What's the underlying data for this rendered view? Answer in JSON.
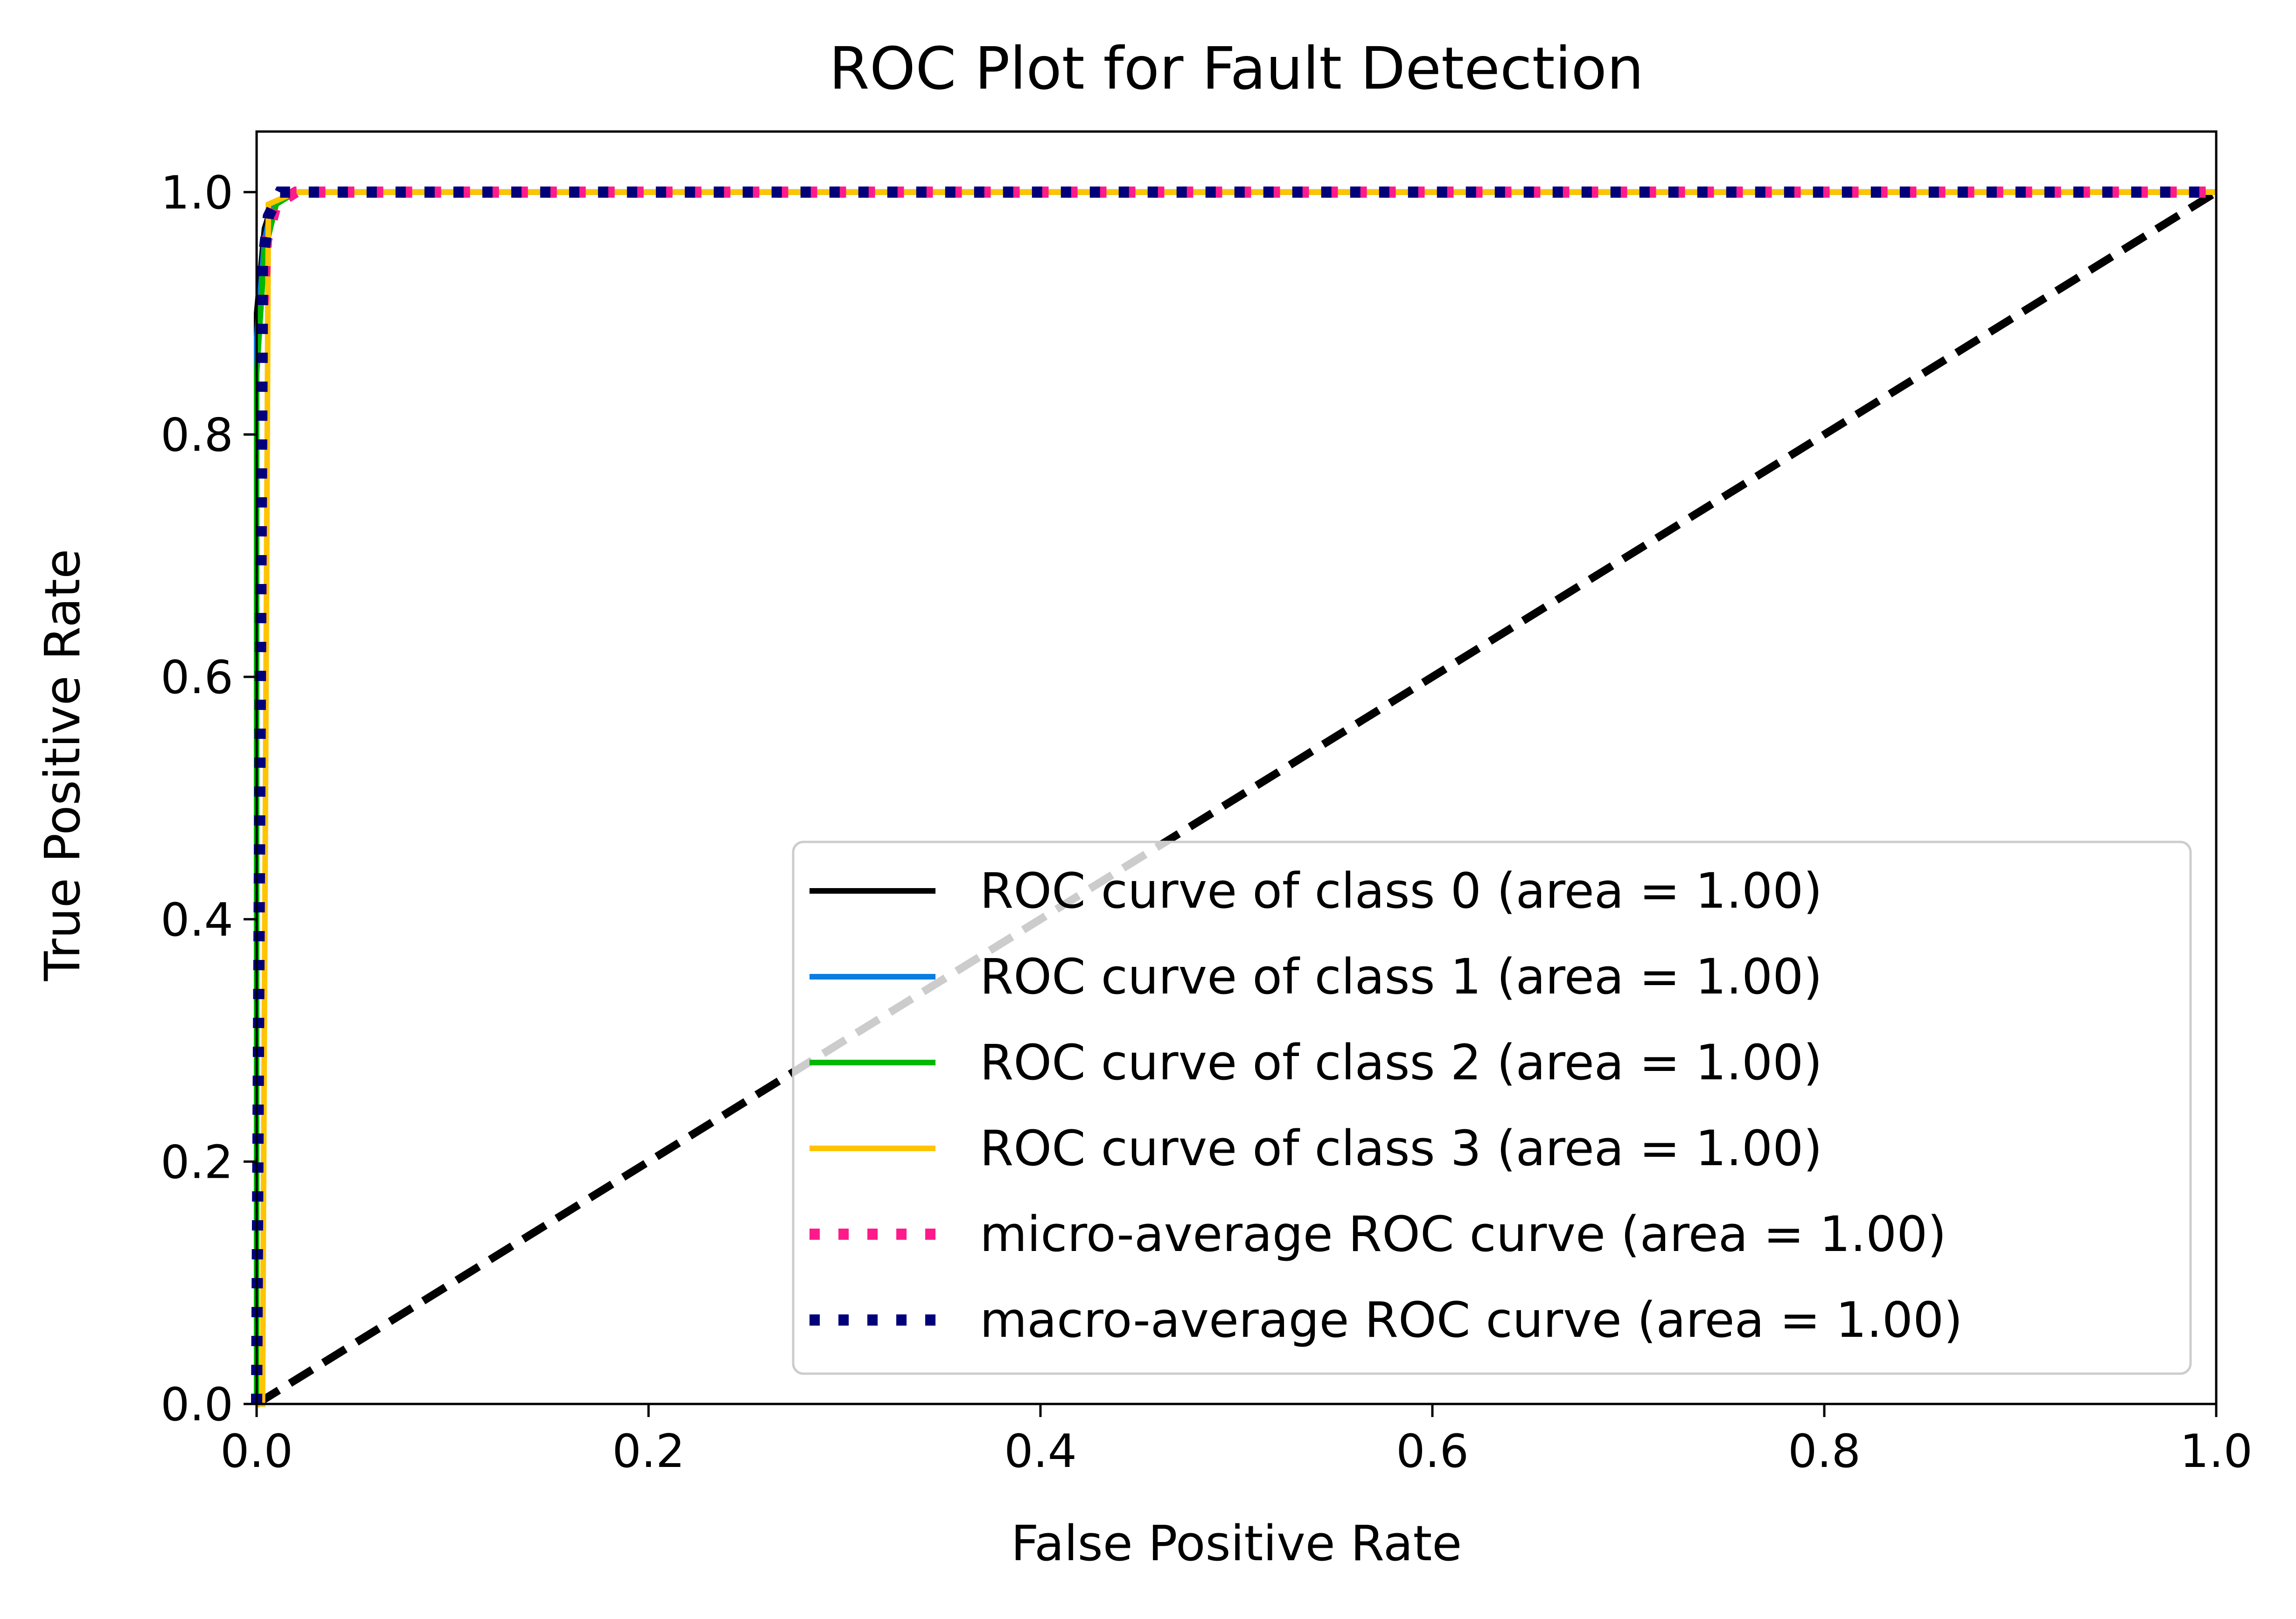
{
  "chart_data": {
    "type": "line",
    "title": "ROC Plot for Fault Detection",
    "xlabel": "False Positive Rate",
    "ylabel": "True Positive Rate",
    "xlim": [
      0.0,
      1.0
    ],
    "ylim": [
      0.0,
      1.05
    ],
    "xticks": [
      0.0,
      0.2,
      0.4,
      0.6,
      0.8,
      1.0
    ],
    "xtick_labels": [
      "0.0",
      "0.2",
      "0.4",
      "0.6",
      "0.8",
      "1.0"
    ],
    "yticks": [
      0.0,
      0.2,
      0.4,
      0.6,
      0.8,
      1.0
    ],
    "ytick_labels": [
      "0.0",
      "0.2",
      "0.4",
      "0.6",
      "0.8",
      "1.0"
    ],
    "grid": false,
    "legend_position": "lower-right",
    "reference_line": {
      "x": [
        0.0,
        1.0
      ],
      "y": [
        0.0,
        1.0
      ],
      "color": "#000000",
      "style": "dashed"
    },
    "series": [
      {
        "name": "ROC curve of class 0 (area = 1.00)",
        "color": "#000000",
        "style": "solid",
        "x": [
          0.0,
          0.0,
          0.004,
          0.008,
          0.02,
          1.0
        ],
        "y": [
          0.0,
          0.9,
          0.97,
          0.99,
          1.0,
          1.0
        ]
      },
      {
        "name": "ROC curve of class 1 (area = 1.00)",
        "color": "#0b7de0",
        "style": "solid",
        "x": [
          0.0,
          0.0,
          0.004,
          0.008,
          0.02,
          1.0
        ],
        "y": [
          0.0,
          0.88,
          0.96,
          0.99,
          1.0,
          1.0
        ]
      },
      {
        "name": "ROC curve of class 2 (area = 1.00)",
        "color": "#00b800",
        "style": "solid",
        "x": [
          0.0,
          0.0,
          0.004,
          0.01,
          0.02,
          1.0
        ],
        "y": [
          0.0,
          0.85,
          0.95,
          0.99,
          1.0,
          1.0
        ]
      },
      {
        "name": "ROC curve of class 3 (area = 1.00)",
        "color": "#ffc400",
        "style": "solid",
        "x": [
          0.0,
          0.003,
          0.006,
          0.02,
          1.0
        ],
        "y": [
          0.0,
          0.0,
          0.99,
          1.0,
          1.0
        ]
      },
      {
        "name": "micro-average ROC curve (area = 1.00)",
        "color": "#ff1a8c",
        "style": "dotted",
        "x": [
          0.0,
          0.003,
          0.005,
          0.01,
          0.02,
          1.0
        ],
        "y": [
          0.0,
          0.9,
          0.96,
          0.99,
          1.0,
          1.0
        ]
      },
      {
        "name": "macro-average ROC curve (area = 1.00)",
        "color": "#00007a",
        "style": "dotted",
        "x": [
          0.0,
          0.003,
          0.006,
          0.012,
          1.0
        ],
        "y": [
          0.0,
          0.94,
          0.98,
          1.0,
          1.0
        ]
      }
    ]
  }
}
